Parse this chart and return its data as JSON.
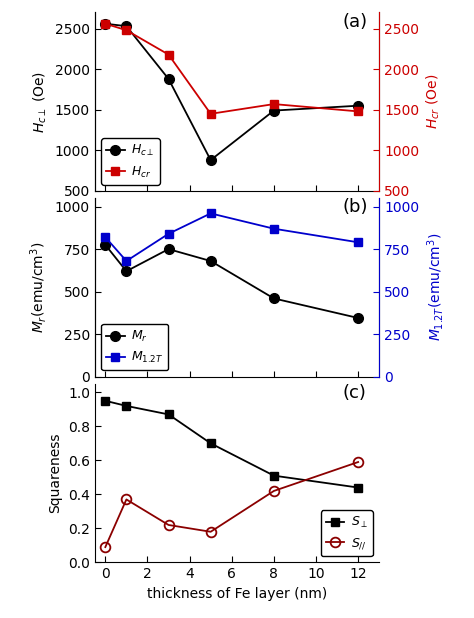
{
  "x": [
    0,
    1,
    3,
    5,
    8,
    12
  ],
  "panel_a": {
    "Hc_perp": [
      2560,
      2530,
      1880,
      880,
      1490,
      1550
    ],
    "Hcr": [
      2560,
      2480,
      2180,
      1450,
      1570,
      1480
    ],
    "ylabel_left": "$H_{c\\perp}$ (Oe)",
    "ylabel_right": "$H_{cr}$ (Oe)",
    "ylim_left": [
      500,
      2700
    ],
    "ylim_right": [
      500,
      2700
    ],
    "yticks_left": [
      500,
      1000,
      1500,
      2000,
      2500
    ],
    "yticks_right": [
      500,
      1000,
      1500,
      2000,
      2500
    ],
    "label": "(a)"
  },
  "panel_b": {
    "Mr": [
      775,
      620,
      750,
      680,
      460,
      345
    ],
    "M12T": [
      820,
      680,
      840,
      960,
      870,
      790
    ],
    "ylabel_left": "$M_r$(emu/cm$^3$)",
    "ylabel_right": "$M_{1.2T}$(emu/cm$^3$)",
    "ylim_left": [
      0,
      1050
    ],
    "ylim_right": [
      0,
      1050
    ],
    "yticks_left": [
      0,
      250,
      500,
      750,
      1000
    ],
    "yticks_right": [
      0,
      250,
      500,
      750,
      1000
    ],
    "label": "(b)"
  },
  "panel_c": {
    "S_perp": [
      0.95,
      0.92,
      0.87,
      0.7,
      0.51,
      0.44
    ],
    "S_para": [
      0.09,
      0.37,
      0.22,
      0.18,
      0.42,
      0.59
    ],
    "ylabel": "Squareness",
    "xlabel": "thickness of Fe layer (nm)",
    "ylim": [
      0.0,
      1.05
    ],
    "yticks": [
      0.0,
      0.2,
      0.4,
      0.6,
      0.8,
      1.0
    ],
    "xticks": [
      0,
      2,
      4,
      6,
      8,
      10,
      12
    ],
    "label": "(c)"
  },
  "colors": {
    "black": "#000000",
    "red": "#cc0000",
    "blue": "#0000cc",
    "dark_red": "#8b0000"
  },
  "xlim": [
    -0.5,
    13.0
  ]
}
